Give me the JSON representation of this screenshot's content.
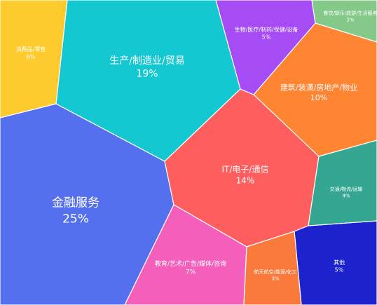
{
  "chart_data": {
    "type": "voronoi-treemap",
    "title": "",
    "series": [
      {
        "name": "金融服务",
        "value_label": "25%",
        "value": 25,
        "color": "#5470ee"
      },
      {
        "name": "生产/制造业/贸易",
        "value_label": "19%",
        "value": 19,
        "color": "#13c8d0"
      },
      {
        "name": "IT/电子/通信",
        "value_label": "14%",
        "value": 14,
        "color": "#ff5e5e"
      },
      {
        "name": "建筑/装潢/房地产/物业",
        "value_label": "10%",
        "value": 10,
        "color": "#ff8533"
      },
      {
        "name": "教育/艺术/广告/媒体/咨询",
        "value_label": "7%",
        "value": 7,
        "color": "#f45fbc"
      },
      {
        "name": "消费品/零售",
        "value_label": "6%",
        "value": 6,
        "color": "#fdcb2e"
      },
      {
        "name": "生物/医疗/制药/保健/设备",
        "value_label": "5%",
        "value": 5,
        "color": "#a54cf5"
      },
      {
        "name": "其他",
        "value_label": "5%",
        "value": 5,
        "color": "#1c22cc"
      },
      {
        "name": "交通/物流/运输",
        "value_label": "4%",
        "value": 4,
        "color": "#35a692"
      },
      {
        "name": "航天航空/能源/化工",
        "value_label": "3%",
        "value": 3,
        "color": "#fa7a3c"
      },
      {
        "name": "餐饮/娱乐/旅游/生活服务",
        "value_label": "2%",
        "value": 2,
        "color": "#84c98a"
      }
    ]
  }
}
